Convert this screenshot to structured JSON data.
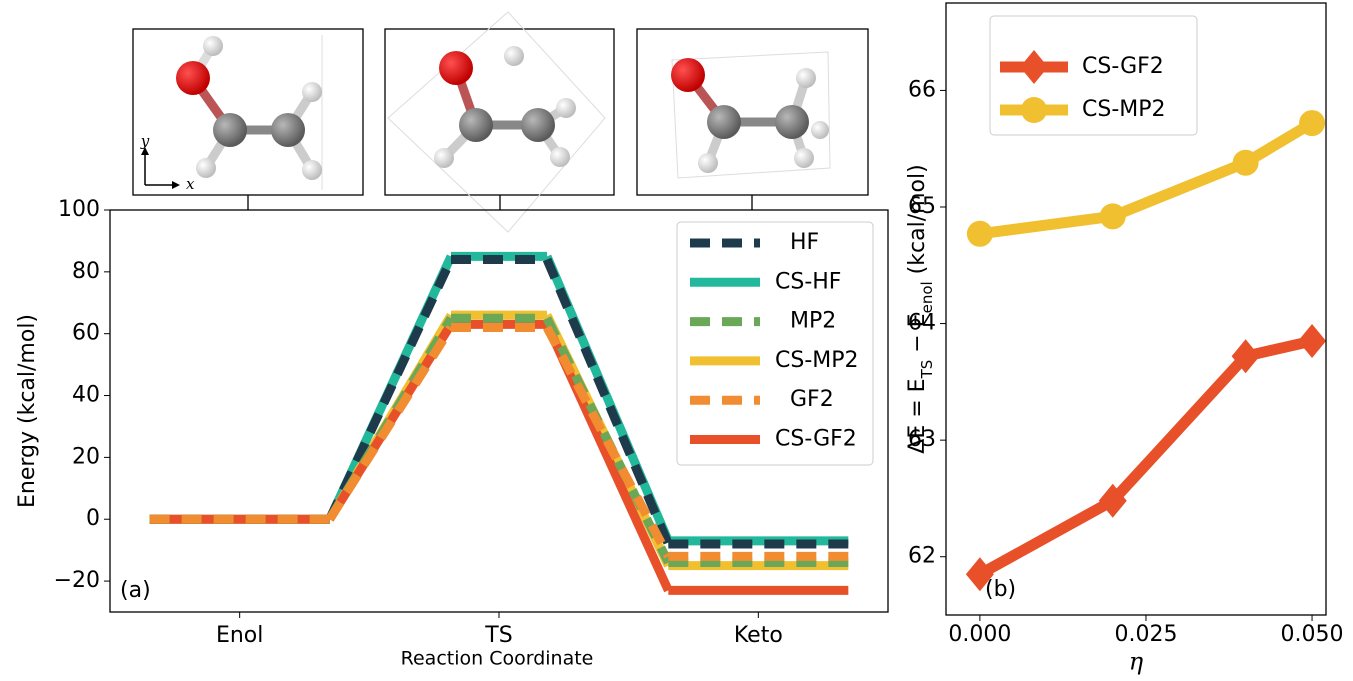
{
  "chart_data": [
    {
      "type": "level-diagram",
      "ylabel": "Energy (kcal/mol)",
      "xlabel": "Reaction Coordinate",
      "panel_label": "(a)",
      "inset_axis_labels": [
        "y",
        "x"
      ],
      "categories": [
        "Enol",
        "TS",
        "Keto"
      ],
      "ylim": [
        -30,
        100
      ],
      "yticks": [
        {
          "value": -20,
          "label": "−20"
        },
        0,
        20,
        40,
        60,
        80,
        100
      ],
      "legend": "upper right",
      "series": [
        {
          "name": "HF",
          "color": "#1e3b4c",
          "dashed": true,
          "values": [
            0,
            84,
            -8
          ]
        },
        {
          "name": "CS-HF",
          "color": "#22b89c",
          "dashed": false,
          "values": [
            0,
            85,
            -7
          ]
        },
        {
          "name": "MP2",
          "color": "#6aa858",
          "dashed": true,
          "values": [
            0,
            65,
            -14
          ]
        },
        {
          "name": "CS-MP2",
          "color": "#f0c030",
          "dashed": false,
          "values": [
            0,
            66,
            -15
          ]
        },
        {
          "name": "GF2",
          "color": "#f28c30",
          "dashed": true,
          "values": [
            0,
            62,
            -12
          ]
        },
        {
          "name": "CS-GF2",
          "color": "#e8502a",
          "dashed": false,
          "values": [
            0,
            63,
            -23
          ]
        }
      ]
    },
    {
      "type": "line",
      "xlabel": "η",
      "ylabel": [
        "ΔE = E",
        "TS",
        " − E",
        "enol",
        " (kcal/mol)"
      ],
      "panel_label": "(b)",
      "x": [
        0,
        0.02,
        0.04,
        0.05
      ],
      "xlim": [
        -0.0051,
        0.0521
      ],
      "xticks": [
        {
          "value": 0,
          "label": "0.000"
        },
        {
          "value": 0.025,
          "label": "0.025"
        },
        {
          "value": 0.05,
          "label": "0.050"
        }
      ],
      "ylim": [
        61.5,
        66.75
      ],
      "yticks": [
        62,
        63,
        64,
        65,
        66
      ],
      "legend": "upper left",
      "series": [
        {
          "name": "CS-GF2",
          "color": "#e8502a",
          "marker": "diamond",
          "values": [
            61.85,
            62.48,
            63.72,
            63.85
          ]
        },
        {
          "name": "CS-MP2",
          "color": "#f0c030",
          "marker": "circle",
          "values": [
            64.77,
            64.92,
            65.38,
            65.72
          ]
        }
      ]
    }
  ]
}
